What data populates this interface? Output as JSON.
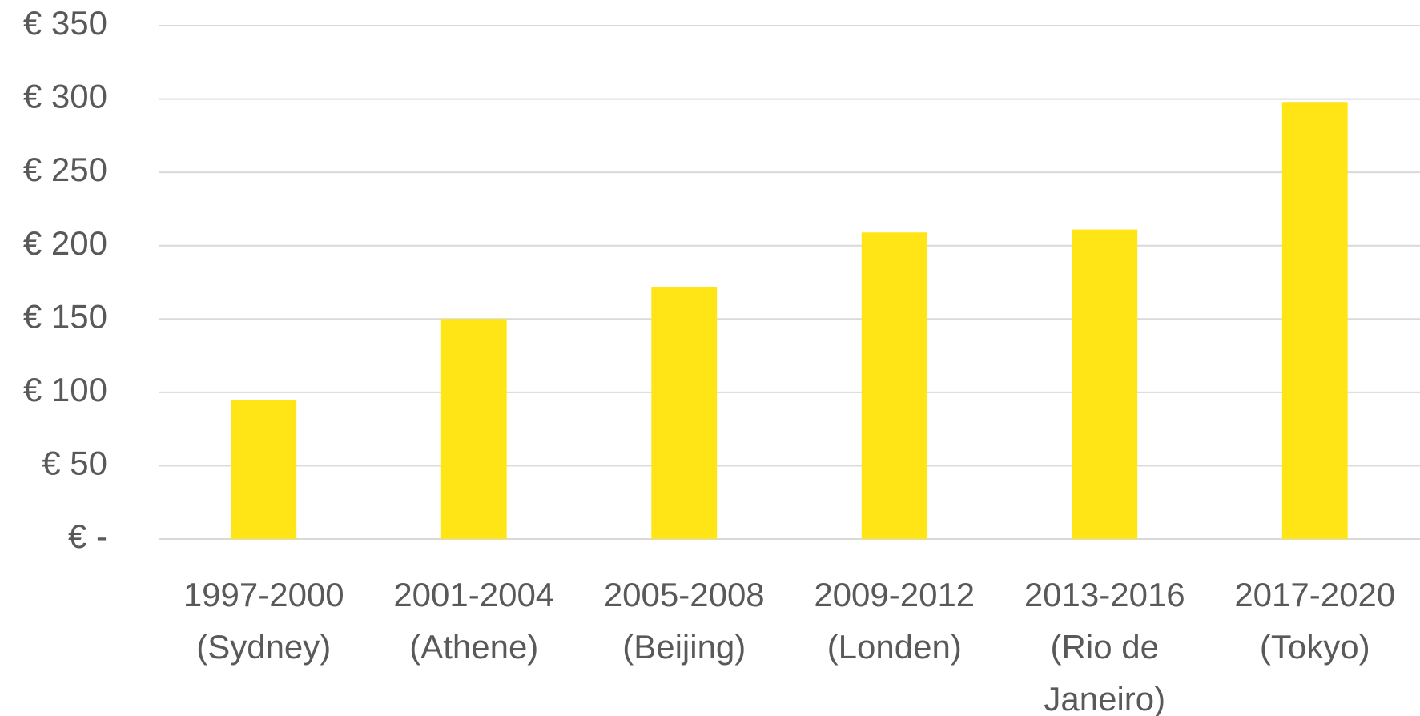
{
  "chart_data": {
    "type": "bar",
    "categories": [
      "1997-2000 (Sydney)",
      "2001-2004 (Athene)",
      "2005-2008 (Beijing)",
      "2009-2012 (Londen)",
      "2013-2016 (Rio de Janeiro)",
      "2017-2020 (Tokyo)"
    ],
    "values": [
      95,
      150,
      172,
      209,
      211,
      298
    ],
    "color": "#ffe516",
    "ylim": [
      0,
      350
    ],
    "yticks": [
      {
        "value": 0,
        "label": "€ -"
      },
      {
        "value": 50,
        "label": "€ 50"
      },
      {
        "value": 100,
        "label": "€ 100"
      },
      {
        "value": 150,
        "label": "€ 150"
      },
      {
        "value": 200,
        "label": "€ 200"
      },
      {
        "value": 250,
        "label": "€ 250"
      },
      {
        "value": 300,
        "label": "€ 300"
      },
      {
        "value": 350,
        "label": "€ 350"
      }
    ],
    "grid": true
  }
}
